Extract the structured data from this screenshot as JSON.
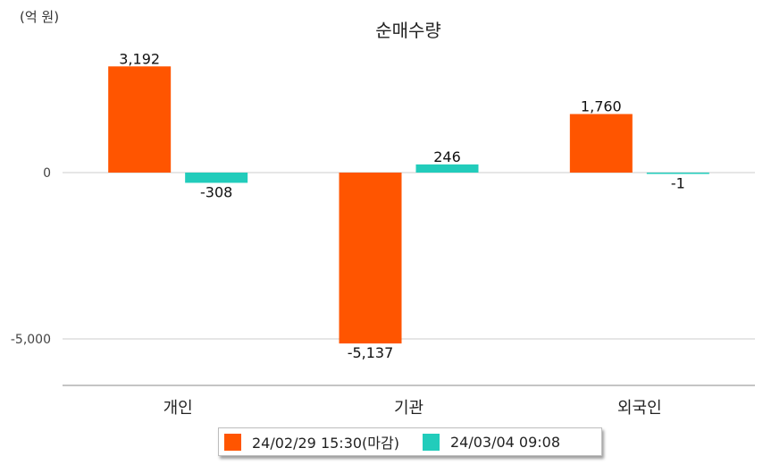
{
  "chart_data": {
    "type": "bar",
    "title": "순매수량",
    "unit_label": "(억 원)",
    "categories": [
      "개인",
      "기관",
      "외국인"
    ],
    "series": [
      {
        "name": "24/02/29 15:30(마감)",
        "color": "#ff5500",
        "values": [
          3192,
          -5137,
          1760
        ]
      },
      {
        "name": "24/03/04 09:08",
        "color": "#22ccbb",
        "values": [
          -308,
          246,
          -1
        ]
      }
    ],
    "value_labels": [
      [
        "3,192",
        "-5,137",
        "1,760"
      ],
      [
        "-308",
        "246",
        "-1"
      ]
    ],
    "y_ticks": [
      {
        "value": 0,
        "label": "0"
      },
      {
        "value": -5000,
        "label": "-5,000"
      }
    ],
    "ylim": [
      -6400,
      3200
    ],
    "grid": true,
    "legend_position": "bottom"
  }
}
